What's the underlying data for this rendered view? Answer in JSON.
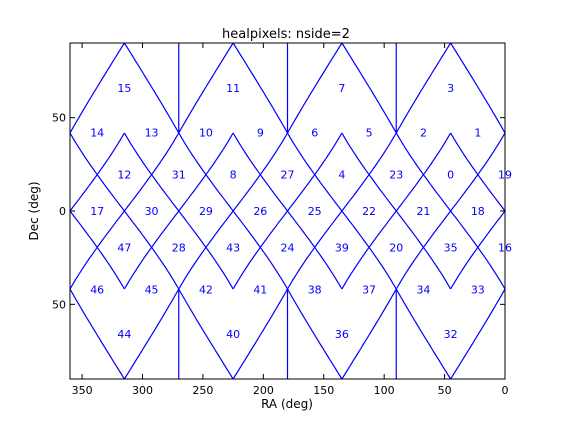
{
  "chart_data": {
    "type": "line",
    "title": "healpixels: nside=2",
    "xlabel": "RA (deg)",
    "ylabel": "Dec (deg)",
    "xlim": [
      360,
      0
    ],
    "ylim": [
      -90,
      90
    ],
    "x_reversed": true,
    "grid": false,
    "line_color": "#0000ff",
    "frame_color": "#000000",
    "x_ticks": [
      {
        "value": 350,
        "label": "350"
      },
      {
        "value": 300,
        "label": "300"
      },
      {
        "value": 250,
        "label": "250"
      },
      {
        "value": 200,
        "label": "200"
      },
      {
        "value": 150,
        "label": "150"
      },
      {
        "value": 100,
        "label": "100"
      },
      {
        "value": 50,
        "label": "50"
      },
      {
        "value": 0,
        "label": "0"
      }
    ],
    "y_ticks": [
      {
        "value": 50,
        "label": "50"
      },
      {
        "value": 0,
        "label": "0"
      },
      {
        "value": -50,
        "label": "50"
      }
    ],
    "pixel_labels": [
      {
        "id": "15",
        "ra": 315,
        "dec": 66
      },
      {
        "id": "11",
        "ra": 225,
        "dec": 66
      },
      {
        "id": "7",
        "ra": 135,
        "dec": 66
      },
      {
        "id": "3",
        "ra": 45,
        "dec": 66
      },
      {
        "id": "14",
        "ra": 337.5,
        "dec": 42
      },
      {
        "id": "13",
        "ra": 292.5,
        "dec": 42
      },
      {
        "id": "10",
        "ra": 247.5,
        "dec": 42
      },
      {
        "id": "9",
        "ra": 202.5,
        "dec": 42
      },
      {
        "id": "6",
        "ra": 157.5,
        "dec": 42
      },
      {
        "id": "5",
        "ra": 112.5,
        "dec": 42
      },
      {
        "id": "2",
        "ra": 67.5,
        "dec": 42
      },
      {
        "id": "1",
        "ra": 22.5,
        "dec": 42
      },
      {
        "id": "12",
        "ra": 315,
        "dec": 19.5
      },
      {
        "id": "31",
        "ra": 270,
        "dec": 19.5
      },
      {
        "id": "8",
        "ra": 225,
        "dec": 19.5
      },
      {
        "id": "27",
        "ra": 180,
        "dec": 19.5
      },
      {
        "id": "4",
        "ra": 135,
        "dec": 19.5
      },
      {
        "id": "23",
        "ra": 90,
        "dec": 19.5
      },
      {
        "id": "0",
        "ra": 45,
        "dec": 19.5
      },
      {
        "id": "19",
        "ra": 0,
        "dec": 19.5
      },
      {
        "id": "17",
        "ra": 337.5,
        "dec": 0
      },
      {
        "id": "30",
        "ra": 292.5,
        "dec": 0
      },
      {
        "id": "29",
        "ra": 247.5,
        "dec": 0
      },
      {
        "id": "26",
        "ra": 202.5,
        "dec": 0
      },
      {
        "id": "25",
        "ra": 157.5,
        "dec": 0
      },
      {
        "id": "22",
        "ra": 112.5,
        "dec": 0
      },
      {
        "id": "21",
        "ra": 67.5,
        "dec": 0
      },
      {
        "id": "18",
        "ra": 22.5,
        "dec": 0
      },
      {
        "id": "47",
        "ra": 315,
        "dec": -19.5
      },
      {
        "id": "28",
        "ra": 270,
        "dec": -19.5
      },
      {
        "id": "43",
        "ra": 225,
        "dec": -19.5
      },
      {
        "id": "24",
        "ra": 180,
        "dec": -19.5
      },
      {
        "id": "39",
        "ra": 135,
        "dec": -19.5
      },
      {
        "id": "20",
        "ra": 90,
        "dec": -19.5
      },
      {
        "id": "35",
        "ra": 45,
        "dec": -19.5
      },
      {
        "id": "16",
        "ra": 0,
        "dec": -19.5
      },
      {
        "id": "46",
        "ra": 337.5,
        "dec": -42
      },
      {
        "id": "45",
        "ra": 292.5,
        "dec": -42
      },
      {
        "id": "42",
        "ra": 247.5,
        "dec": -42
      },
      {
        "id": "41",
        "ra": 202.5,
        "dec": -42
      },
      {
        "id": "38",
        "ra": 157.5,
        "dec": -42
      },
      {
        "id": "37",
        "ra": 112.5,
        "dec": -42
      },
      {
        "id": "34",
        "ra": 67.5,
        "dec": -42
      },
      {
        "id": "33",
        "ra": 22.5,
        "dec": -42
      },
      {
        "id": "44",
        "ra": 315,
        "dec": -66
      },
      {
        "id": "40",
        "ra": 225,
        "dec": -66
      },
      {
        "id": "36",
        "ra": 135,
        "dec": -66
      },
      {
        "id": "32",
        "ra": 45,
        "dec": -66
      }
    ]
  }
}
